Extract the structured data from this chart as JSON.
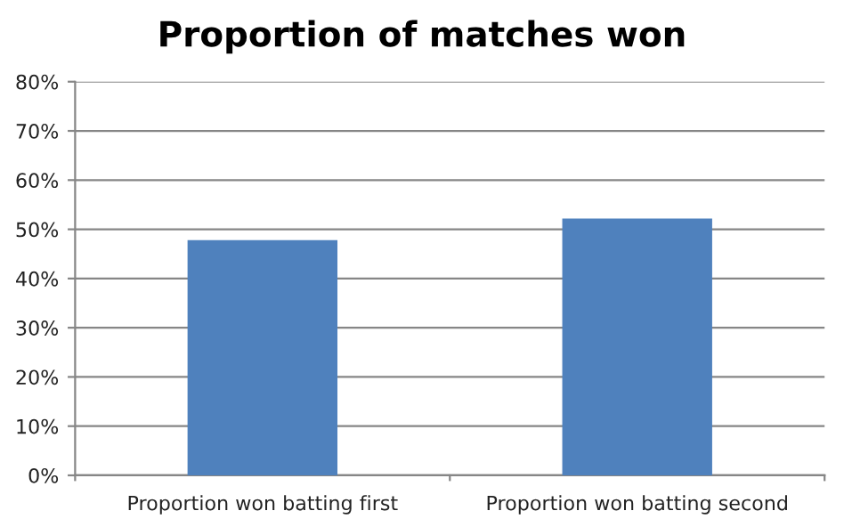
{
  "chart_data": {
    "type": "bar",
    "title": "Proportion of matches won",
    "categories": [
      "Proportion won batting first",
      "Proportion won batting second"
    ],
    "values": [
      47.8,
      52.2
    ],
    "color": "#4f81bd",
    "ylim": [
      0,
      80
    ],
    "yticks": [
      {
        "value": 0,
        "label": "0%"
      },
      {
        "value": 10,
        "label": "10%"
      },
      {
        "value": 20,
        "label": "20%"
      },
      {
        "value": 30,
        "label": "30%"
      },
      {
        "value": 40,
        "label": "40%"
      },
      {
        "value": 50,
        "label": "50%"
      },
      {
        "value": 60,
        "label": "60%"
      },
      {
        "value": 70,
        "label": "70%"
      },
      {
        "value": 80,
        "label": "80%"
      }
    ],
    "grid": "y",
    "legend": false
  }
}
